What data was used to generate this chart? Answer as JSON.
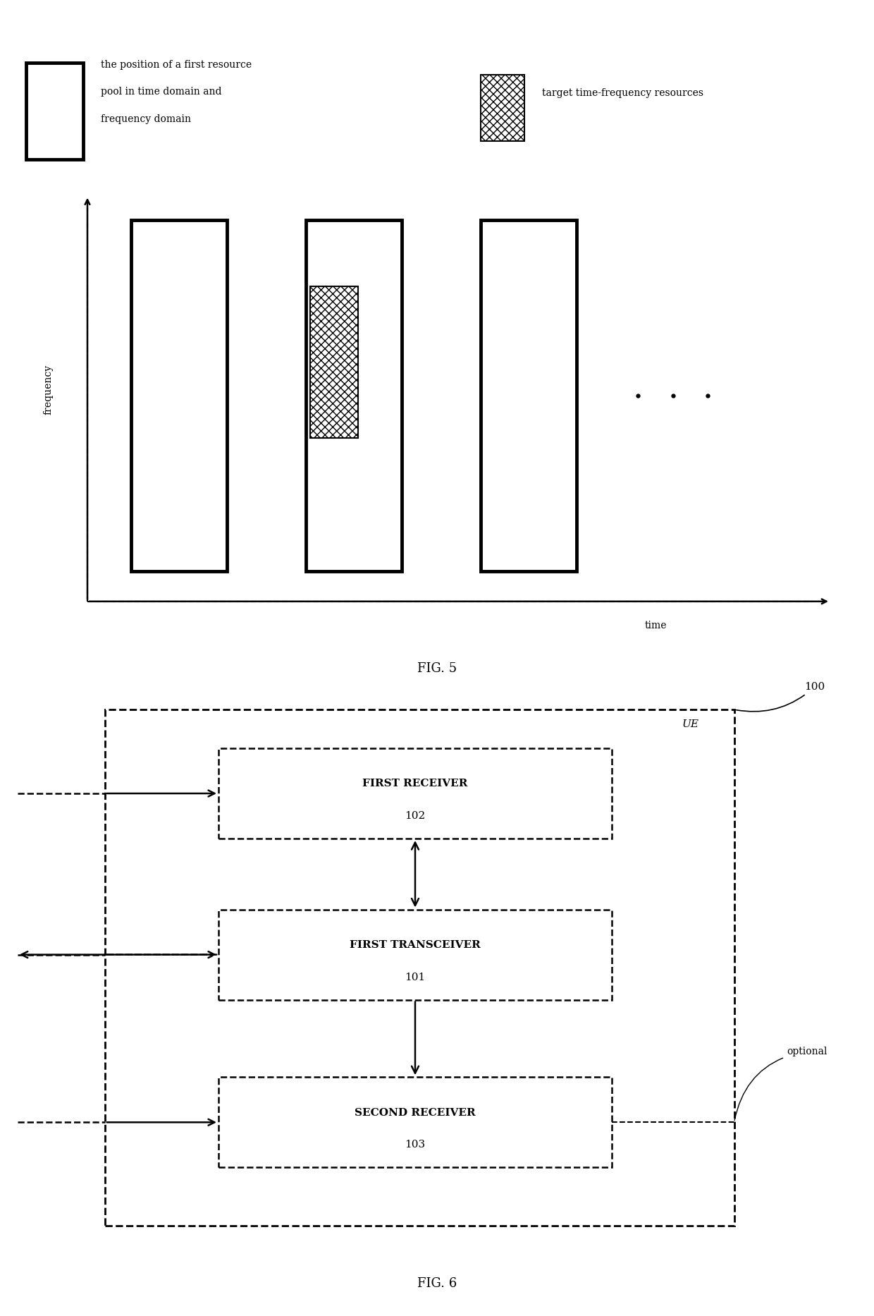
{
  "fig5": {
    "legend_box1_label_line1": "the position of a first resource",
    "legend_box1_label_line2": "pool in time domain and",
    "legend_box1_label_line3": "frequency domain",
    "legend_box2_label": "target time-frequency resources",
    "freq_label": "frequency",
    "time_label": "time",
    "fig_label": "FIG. 5"
  },
  "fig6": {
    "fig_label": "FIG. 6",
    "outer_label": "100",
    "ue_label": "UE",
    "box1_label": "FIRST RECEIVER",
    "box1_num": "102",
    "box2_label": "FIRST TRANSCEIVER",
    "box2_num": "101",
    "box3_label": "SECOND RECEIVER",
    "box3_num": "103",
    "optional_label": "optional"
  },
  "bg_color": "#ffffff",
  "line_color": "#000000",
  "text_color": "#000000"
}
